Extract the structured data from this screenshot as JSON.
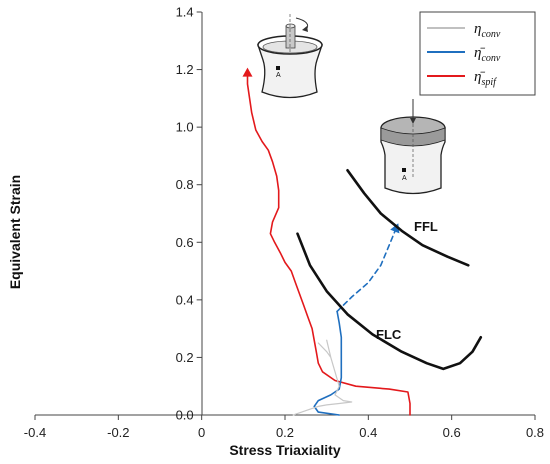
{
  "chart_data": {
    "type": "line",
    "xlabel": "Stress Triaxiality",
    "ylabel": "Equivalent Strain",
    "xlim": [
      -0.4,
      0.8
    ],
    "ylim": [
      0,
      1.4
    ],
    "x_ticks": [
      "-0.4",
      "-0.2",
      "0",
      "0.2",
      "0.4",
      "0.6",
      "0.8"
    ],
    "y_ticks": [
      "0.0",
      "0.2",
      "0.4",
      "0.6",
      "0.8",
      "1.0",
      "1.2",
      "1.4"
    ],
    "grid": false,
    "legend_position": "top-right",
    "legend": [
      {
        "symbol": "η",
        "bar": false,
        "subscript": "conv",
        "color": "#c0c0c0"
      },
      {
        "symbol": "η",
        "bar": true,
        "subscript": "conv",
        "color": "#1f6fbf"
      },
      {
        "symbol": "η",
        "bar": true,
        "subscript": "spif",
        "color": "#e3191c"
      }
    ],
    "series": [
      {
        "color": "#e3191c",
        "style": "solid",
        "end_marker": "arrow",
        "points": [
          [
            0.5,
            0.0
          ],
          [
            0.5,
            0.04
          ],
          [
            0.495,
            0.08
          ],
          [
            0.45,
            0.09
          ],
          [
            0.37,
            0.1
          ],
          [
            0.32,
            0.12
          ],
          [
            0.29,
            0.15
          ],
          [
            0.28,
            0.18
          ],
          [
            0.275,
            0.22
          ],
          [
            0.27,
            0.26
          ],
          [
            0.265,
            0.3
          ],
          [
            0.255,
            0.34
          ],
          [
            0.245,
            0.38
          ],
          [
            0.235,
            0.42
          ],
          [
            0.225,
            0.46
          ],
          [
            0.215,
            0.5
          ],
          [
            0.2,
            0.53
          ],
          [
            0.19,
            0.56
          ],
          [
            0.175,
            0.6
          ],
          [
            0.165,
            0.63
          ],
          [
            0.17,
            0.67
          ],
          [
            0.185,
            0.72
          ],
          [
            0.185,
            0.78
          ],
          [
            0.18,
            0.83
          ],
          [
            0.17,
            0.88
          ],
          [
            0.16,
            0.92
          ],
          [
            0.145,
            0.95
          ],
          [
            0.13,
            0.99
          ],
          [
            0.12,
            1.05
          ],
          [
            0.115,
            1.1
          ],
          [
            0.11,
            1.15
          ],
          [
            0.11,
            1.2
          ]
        ]
      },
      {
        "color": "#1f6fbf",
        "style": "solid",
        "points": [
          [
            0.33,
            0.0
          ],
          [
            0.28,
            0.01
          ],
          [
            0.27,
            0.03
          ],
          [
            0.28,
            0.05
          ],
          [
            0.31,
            0.07
          ],
          [
            0.33,
            0.09
          ],
          [
            0.335,
            0.13
          ],
          [
            0.335,
            0.2
          ],
          [
            0.335,
            0.27
          ],
          [
            0.33,
            0.32
          ],
          [
            0.325,
            0.36
          ]
        ]
      },
      {
        "color": "#1f6fbf",
        "style": "dashed",
        "end_marker": "arrow",
        "points": [
          [
            0.325,
            0.36
          ],
          [
            0.36,
            0.41
          ],
          [
            0.4,
            0.46
          ],
          [
            0.43,
            0.52
          ],
          [
            0.45,
            0.59
          ],
          [
            0.47,
            0.66
          ]
        ]
      },
      {
        "color": "#c8c8c8",
        "style": "solid",
        "points": [
          [
            0.22,
            0.0
          ],
          [
            0.24,
            0.01
          ],
          [
            0.26,
            0.02
          ],
          [
            0.28,
            0.03
          ],
          [
            0.3,
            0.035
          ],
          [
            0.33,
            0.04
          ],
          [
            0.36,
            0.045
          ],
          [
            0.34,
            0.05
          ],
          [
            0.32,
            0.07
          ],
          [
            0.33,
            0.1
          ],
          [
            0.32,
            0.15
          ],
          [
            0.31,
            0.2
          ],
          [
            0.3,
            0.26
          ],
          [
            0.31,
            0.2
          ],
          [
            0.3,
            0.22
          ],
          [
            0.28,
            0.25
          ]
        ]
      },
      {
        "name": "FLC",
        "color": "#111111",
        "style": "solid",
        "points": [
          [
            0.23,
            0.63
          ],
          [
            0.26,
            0.52
          ],
          [
            0.3,
            0.43
          ],
          [
            0.35,
            0.35
          ],
          [
            0.41,
            0.28
          ],
          [
            0.48,
            0.22
          ],
          [
            0.54,
            0.18
          ],
          [
            0.58,
            0.16
          ],
          [
            0.62,
            0.18
          ],
          [
            0.65,
            0.22
          ],
          [
            0.67,
            0.27
          ]
        ]
      },
      {
        "name": "FFL",
        "color": "#111111",
        "style": "solid",
        "points": [
          [
            0.35,
            0.85
          ],
          [
            0.39,
            0.77
          ],
          [
            0.43,
            0.7
          ],
          [
            0.48,
            0.64
          ],
          [
            0.53,
            0.59
          ],
          [
            0.59,
            0.55
          ],
          [
            0.64,
            0.52
          ]
        ]
      }
    ],
    "annotations": [
      {
        "text": "FFL",
        "x": 0.5,
        "y": 0.65
      },
      {
        "text": "FLC",
        "x": 0.43,
        "y": 0.28
      }
    ],
    "inset_labels": [
      "A",
      "A"
    ]
  }
}
